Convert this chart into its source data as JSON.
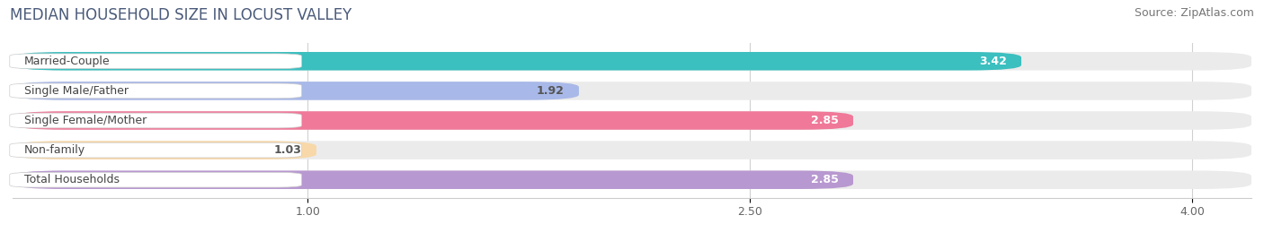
{
  "title": "MEDIAN HOUSEHOLD SIZE IN LOCUST VALLEY",
  "source": "Source: ZipAtlas.com",
  "categories": [
    "Married-Couple",
    "Single Male/Father",
    "Single Female/Mother",
    "Non-family",
    "Total Households"
  ],
  "values": [
    3.42,
    1.92,
    2.85,
    1.03,
    2.85
  ],
  "bar_colors": [
    "#3bbfbf",
    "#a8b8e8",
    "#f07898",
    "#f8d8a8",
    "#b898d0"
  ],
  "track_color": "#ebebeb",
  "value_inside_color": [
    "#ffffff",
    "#555555",
    "#ffffff",
    "#555555",
    "#ffffff"
  ],
  "xlim_data": [
    0.0,
    4.2
  ],
  "xmin": 0.0,
  "xmax": 4.2,
  "xticks": [
    1.0,
    2.5,
    4.0
  ],
  "title_fontsize": 12,
  "source_fontsize": 9,
  "label_fontsize": 9,
  "value_fontsize": 9,
  "background_color": "#ffffff",
  "bar_height": 0.62,
  "label_box_color": "#ffffff",
  "grid_color": "#d0d0d0"
}
